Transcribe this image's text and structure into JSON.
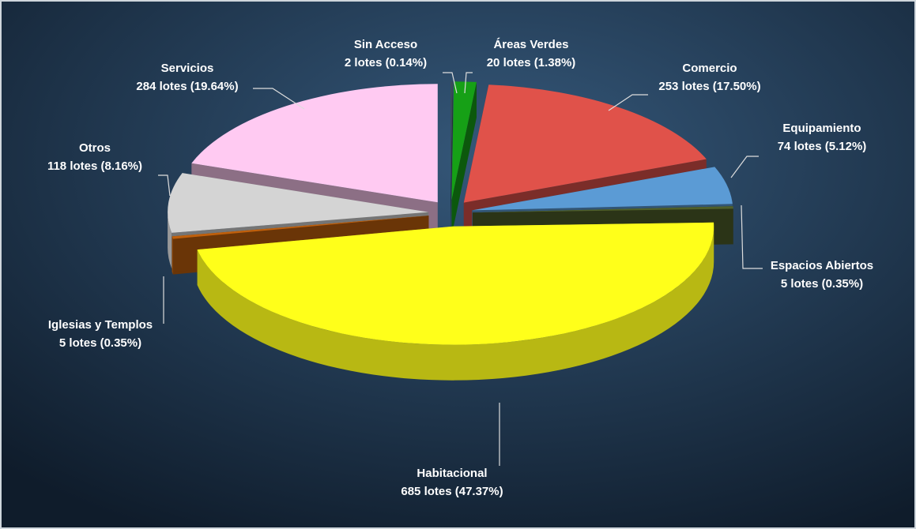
{
  "chart_data": {
    "type": "pie",
    "categories": [
      "Sin Acceso",
      "Áreas Verdes",
      "Comercio",
      "Equipamiento",
      "Espacios Abiertos",
      "Habitacional",
      "Iglesias y Templos",
      "Otros",
      "Servicios"
    ],
    "values": [
      2,
      20,
      253,
      74,
      5,
      685,
      5,
      118,
      284
    ],
    "value_labels": [
      "2 lotes (0.14%)",
      "20 lotes (1.38%)",
      "253 lotes (17.50%)",
      "74 lotes (5.12%)",
      "5 lotes (0.35%)",
      "685 lotes (47.37%)",
      "5 lotes (0.35%)",
      "118 lotes (8.16%)",
      "284 lotes (19.64%)"
    ],
    "colors": [
      "#3a4a5a",
      "#16a016",
      "#e0524a",
      "#5b9bd5",
      "#4f5f2a",
      "#ffff1a",
      "#c0600c",
      "#d4d4d4",
      "#ffcaf2"
    ]
  }
}
